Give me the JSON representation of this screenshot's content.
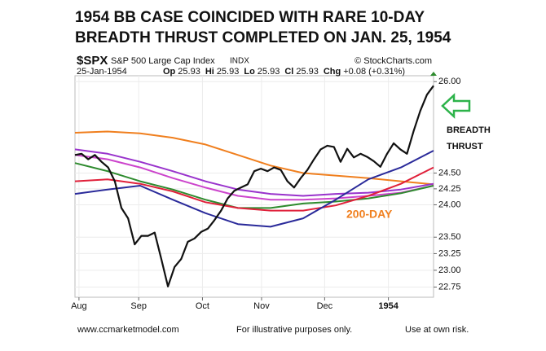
{
  "chart_data": {
    "type": "line",
    "title": [
      "1954 BB CASE COINCIDED WITH RARE 10-DAY",
      "BREADTH THRUST COMPLETED ON JAN. 25, 1954"
    ],
    "symbol": "$SPX",
    "index_name": "S&P 500 Large Cap Index",
    "index_type": "INDX",
    "source": "© StockCharts.com",
    "date": "25-Jan-1954",
    "quote": [
      {
        "label": "Op",
        "value": "25.93"
      },
      {
        "label": "Hi",
        "value": "25.93"
      },
      {
        "label": "Lo",
        "value": "25.93"
      },
      {
        "label": "Cl",
        "value": "25.93"
      },
      {
        "label": "Chg",
        "value": "+0.08 (+0.31%)"
      }
    ],
    "log_scale": true,
    "grid": true,
    "ylim": [
      22.6,
      26.1
    ],
    "yticks": [
      {
        "value": 26,
        "label": "26.00"
      },
      {
        "value": 24.5,
        "label": "24.50"
      },
      {
        "value": 24.25,
        "label": "24.25"
      },
      {
        "value": 24,
        "label": "24.00"
      },
      {
        "value": 23.5,
        "label": "23.50"
      },
      {
        "value": 23.25,
        "label": "23.25"
      },
      {
        "value": 23,
        "label": "23.00"
      },
      {
        "value": 22.75,
        "label": "22.75"
      }
    ],
    "xlim": [
      0,
      54
    ],
    "xticks": [
      {
        "value": 0.6,
        "label": "Aug"
      },
      {
        "value": 9.6,
        "label": "Sep"
      },
      {
        "value": 19.2,
        "label": "Oct"
      },
      {
        "value": 28.1,
        "label": "Nov"
      },
      {
        "value": 37.6,
        "label": "Dec"
      },
      {
        "value": 47.2,
        "label": "1954"
      }
    ],
    "series": [
      {
        "color": "#f07f1e",
        "values": [
          25.15,
          25.17,
          25.14,
          25.07,
          24.96,
          24.79,
          24.62,
          24.5,
          24.46,
          24.42,
          24.37,
          24.32
        ]
      },
      {
        "color": "#9933cc",
        "values": [
          24.88,
          24.81,
          24.68,
          24.53,
          24.37,
          24.24,
          24.17,
          24.14,
          24.17,
          24.19,
          24.24,
          24.33
        ]
      },
      {
        "color": "#cc44cc",
        "values": [
          24.79,
          24.72,
          24.59,
          24.42,
          24.27,
          24.14,
          24.08,
          24.08,
          24.1,
          24.14,
          24.19,
          24.3
        ]
      },
      {
        "color": "#2e8b2e",
        "values": [
          24.66,
          24.53,
          24.37,
          24.24,
          24.08,
          23.95,
          23.95,
          24.02,
          24.05,
          24.1,
          24.18,
          24.3
        ]
      },
      {
        "color": "#e0203a",
        "values": [
          24.37,
          24.4,
          24.33,
          24.21,
          24.04,
          23.95,
          23.91,
          23.91,
          23.99,
          24.14,
          24.33,
          24.59
        ]
      },
      {
        "color": "#2a2a9a",
        "values": [
          24.17,
          24.24,
          24.3,
          24.08,
          23.87,
          23.7,
          23.66,
          23.79,
          24.08,
          24.4,
          24.59,
          24.86
        ]
      },
      {
        "color": "#111111",
        "values": [
          24.79,
          24.81,
          24.72,
          24.79,
          24.68,
          24.59,
          24.37,
          23.95,
          23.79,
          23.39,
          23.52,
          23.52,
          23.57,
          23.17,
          22.76,
          23.05,
          23.17,
          23.43,
          23.48,
          23.58,
          23.63,
          23.76,
          23.91,
          24.1,
          24.22,
          24.27,
          24.32,
          24.53,
          24.57,
          24.53,
          24.59,
          24.55,
          24.37,
          24.27,
          24.42,
          24.55,
          24.72,
          24.88,
          24.94,
          24.92,
          24.68,
          24.89,
          24.75,
          24.81,
          24.76,
          24.69,
          24.6,
          24.81,
          24.98,
          24.88,
          24.81,
          25.18,
          25.51,
          25.78,
          25.93
        ]
      }
    ],
    "annotations": [
      {
        "text": "BREADTH",
        "color": "#111111"
      },
      {
        "text": "THRUST",
        "color": "#111111"
      },
      {
        "text": "200-DAY",
        "color": "#f07f1e"
      }
    ],
    "footer": [
      "www.ccmarketmodel.com",
      "For illustrative purposes only.",
      "Use at own risk."
    ]
  }
}
